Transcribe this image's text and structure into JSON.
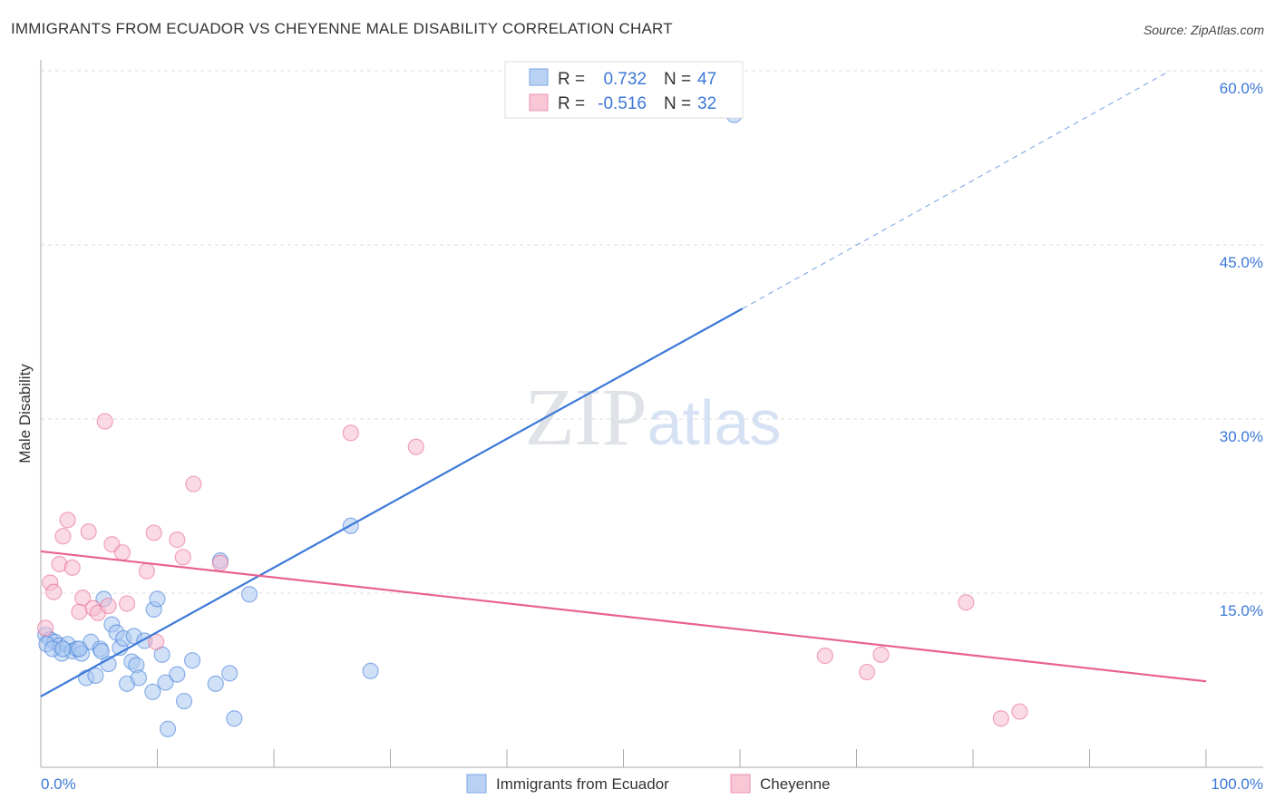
{
  "title": "IMMIGRANTS FROM ECUADOR VS CHEYENNE MALE DISABILITY CORRELATION CHART",
  "source": "Source: ZipAtlas.com",
  "watermark": "ZIPatlas",
  "chart_data": {
    "type": "scatter",
    "title": "IMMIGRANTS FROM ECUADOR VS CHEYENNE MALE DISABILITY CORRELATION CHART",
    "xlabel": "",
    "ylabel": "Male Disability",
    "xlim": [
      0,
      100
    ],
    "ylim": [
      0,
      60
    ],
    "x_tick_labels": [
      "0.0%",
      "100.0%"
    ],
    "y_ticks": [
      15,
      30,
      45,
      60
    ],
    "y_tick_labels": [
      "15.0%",
      "30.0%",
      "45.0%",
      "60.0%"
    ],
    "grid": true,
    "legend_placement": "top-center",
    "legend": [
      {
        "r_label": "R =",
        "r": "0.732",
        "n_label": "N =",
        "n": "47"
      },
      {
        "r_label": "R =",
        "r": "-0.516",
        "n_label": "N =",
        "n": "32"
      }
    ],
    "series": [
      {
        "name": "Immigrants from Ecuador",
        "color": "#3b78d8",
        "fill": "#a9c8f0",
        "trend": {
          "x": [
            0,
            60.2
          ],
          "y": [
            6.1,
            39.5
          ],
          "dashed_to": [
            96.9,
            60
          ]
        },
        "points": [
          [
            0.4,
            11.4
          ],
          [
            0.8,
            11.0
          ],
          [
            1.2,
            10.8
          ],
          [
            1.6,
            10.5
          ],
          [
            1.8,
            9.8
          ],
          [
            2.3,
            10.6
          ],
          [
            2.7,
            10.0
          ],
          [
            3.1,
            10.2
          ],
          [
            3.5,
            9.8
          ],
          [
            3.9,
            7.7
          ],
          [
            4.3,
            10.8
          ],
          [
            4.7,
            7.9
          ],
          [
            5.1,
            10.2
          ],
          [
            5.4,
            14.5
          ],
          [
            5.8,
            8.9
          ],
          [
            6.1,
            12.3
          ],
          [
            6.5,
            11.6
          ],
          [
            6.8,
            10.3
          ],
          [
            7.1,
            11.1
          ],
          [
            7.4,
            7.2
          ],
          [
            7.8,
            9.1
          ],
          [
            8.0,
            11.3
          ],
          [
            8.2,
            8.8
          ],
          [
            8.4,
            7.7
          ],
          [
            8.9,
            10.9
          ],
          [
            9.6,
            6.5
          ],
          [
            9.7,
            13.6
          ],
          [
            10.0,
            14.5
          ],
          [
            10.4,
            9.7
          ],
          [
            10.7,
            7.3
          ],
          [
            10.9,
            3.3
          ],
          [
            11.7,
            8.0
          ],
          [
            12.3,
            5.7
          ],
          [
            13.0,
            9.2
          ],
          [
            15.0,
            7.2
          ],
          [
            15.4,
            17.8
          ],
          [
            16.2,
            8.1
          ],
          [
            16.6,
            4.2
          ],
          [
            17.9,
            14.9
          ],
          [
            26.6,
            20.8
          ],
          [
            28.3,
            8.3
          ],
          [
            59.5,
            56.2
          ],
          [
            0.5,
            10.6
          ],
          [
            1.0,
            10.2
          ],
          [
            1.9,
            10.2
          ],
          [
            3.3,
            10.2
          ],
          [
            5.2,
            10.0
          ]
        ]
      },
      {
        "name": "Cheyenne",
        "color": "#e8628f",
        "fill": "#f6bccd",
        "trend": {
          "x": [
            0,
            100
          ],
          "y": [
            18.6,
            7.4
          ]
        },
        "points": [
          [
            0.4,
            12.0
          ],
          [
            0.8,
            15.9
          ],
          [
            1.1,
            15.1
          ],
          [
            1.6,
            17.5
          ],
          [
            1.9,
            19.9
          ],
          [
            2.3,
            21.3
          ],
          [
            2.7,
            17.2
          ],
          [
            3.3,
            13.4
          ],
          [
            3.6,
            14.6
          ],
          [
            4.1,
            20.3
          ],
          [
            4.5,
            13.7
          ],
          [
            4.9,
            13.3
          ],
          [
            5.5,
            29.8
          ],
          [
            5.8,
            13.9
          ],
          [
            6.1,
            19.2
          ],
          [
            7.0,
            18.5
          ],
          [
            7.4,
            14.1
          ],
          [
            9.1,
            16.9
          ],
          [
            9.7,
            20.2
          ],
          [
            9.9,
            10.8
          ],
          [
            11.7,
            19.6
          ],
          [
            12.2,
            18.1
          ],
          [
            13.1,
            24.4
          ],
          [
            15.4,
            17.6
          ],
          [
            26.6,
            28.8
          ],
          [
            32.2,
            27.6
          ],
          [
            67.3,
            9.6
          ],
          [
            70.9,
            8.2
          ],
          [
            72.1,
            9.7
          ],
          [
            79.4,
            14.2
          ],
          [
            82.4,
            4.2
          ],
          [
            84.0,
            4.8
          ]
        ]
      }
    ]
  }
}
